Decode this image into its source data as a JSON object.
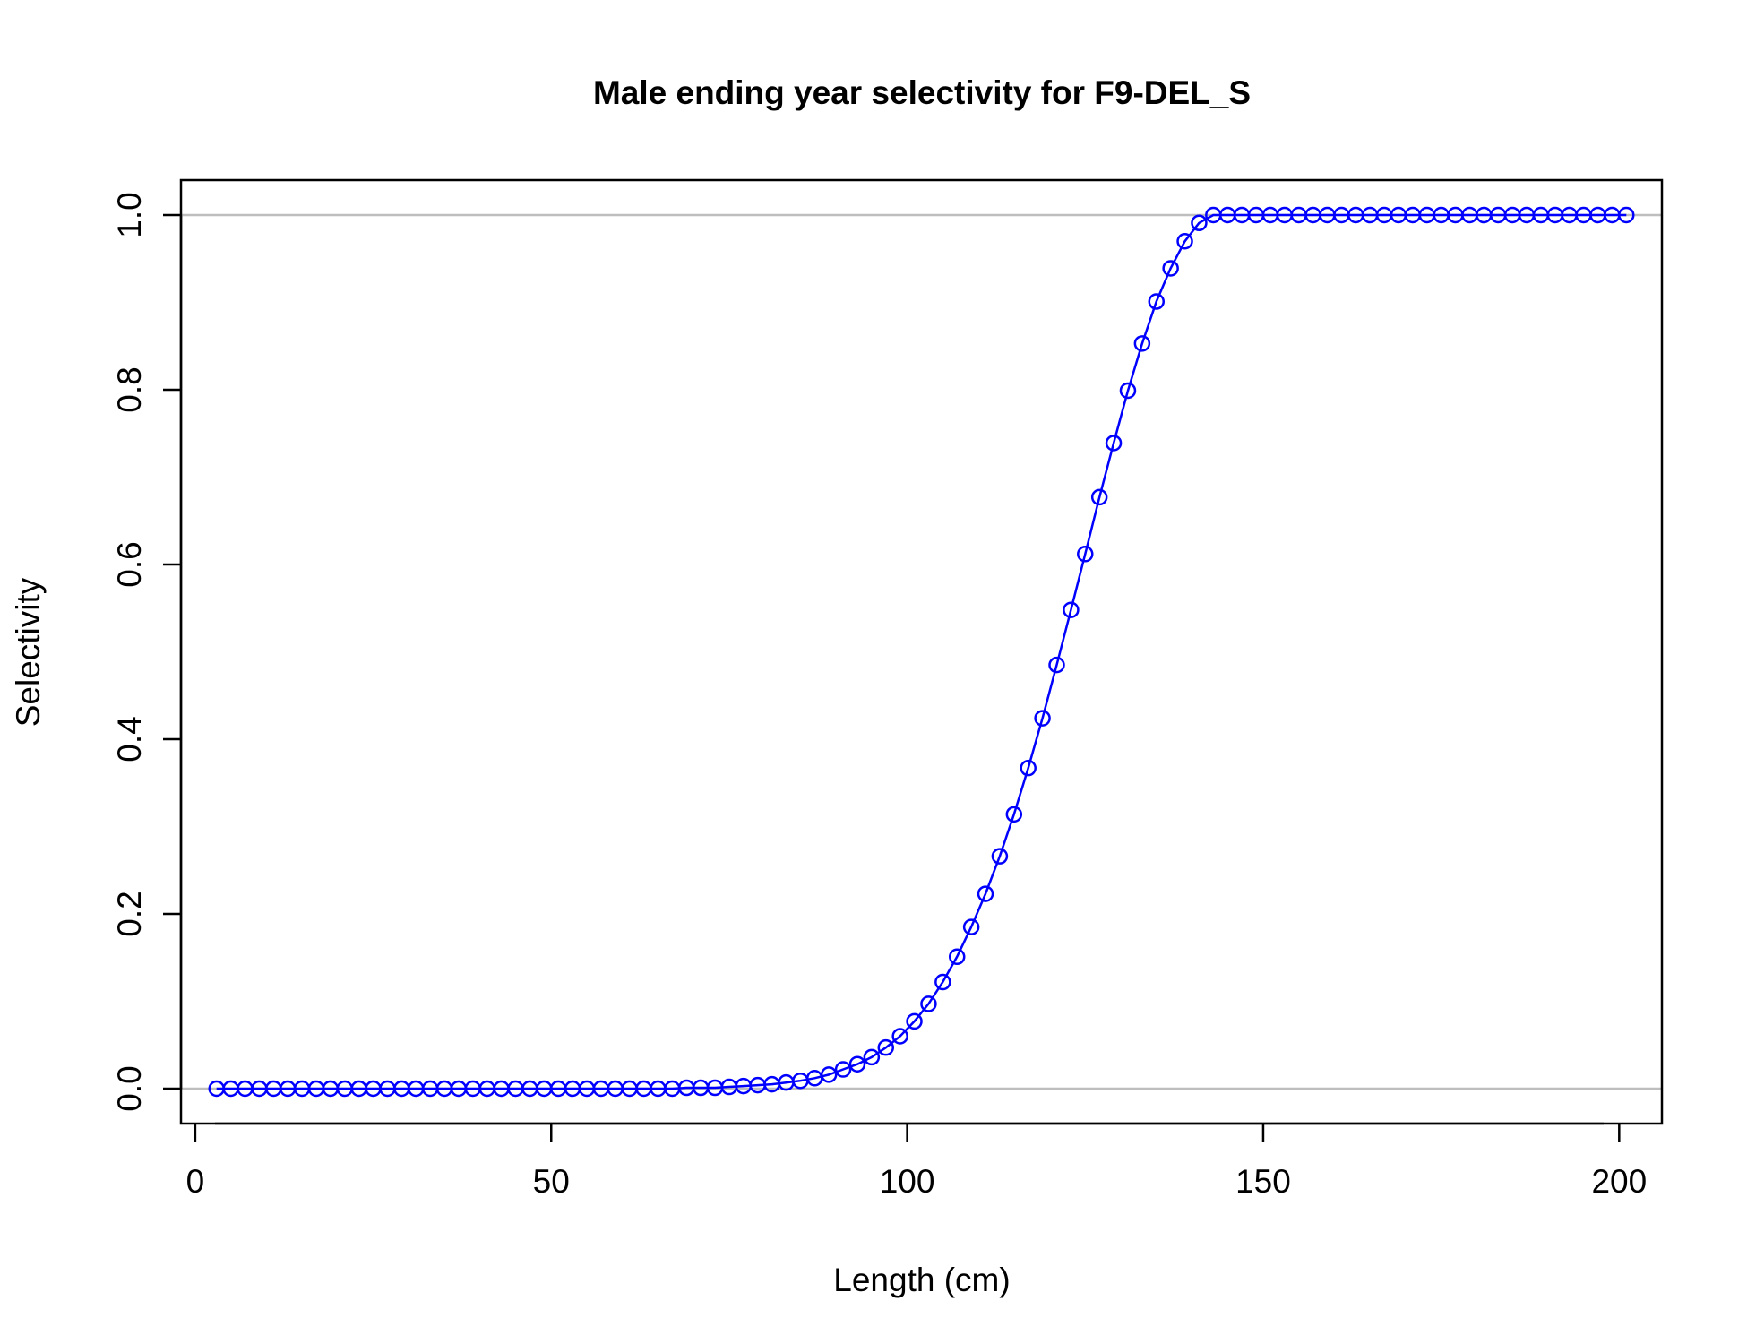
{
  "chart_data": {
    "type": "line",
    "title": "Male ending year selectivity for F9-DEL_S",
    "xlabel": "Length (cm)",
    "ylabel": "Selectivity",
    "xlim": [
      -2,
      206
    ],
    "ylim": [
      -0.04,
      1.04
    ],
    "x_ticks": [
      "0",
      "50",
      "100",
      "150",
      "200"
    ],
    "y_ticks": [
      "0.0",
      "0.2",
      "0.4",
      "0.6",
      "0.8",
      "1.0"
    ],
    "reference_lines": [
      0,
      1
    ],
    "grid": false,
    "colors": {
      "series": "#0000ff",
      "reference": "#bebebe",
      "axes": "#000000"
    },
    "series": [
      {
        "x": [
          3,
          5,
          7,
          9,
          11,
          13,
          15,
          17,
          19,
          21,
          23,
          25,
          27,
          29,
          31,
          33,
          35,
          37,
          39,
          41,
          43,
          45,
          47,
          49,
          51,
          53,
          55,
          57,
          59,
          61,
          63,
          65,
          67,
          69,
          71,
          73,
          75,
          77,
          79,
          81,
          83,
          85,
          87,
          89,
          91,
          93,
          95,
          97,
          99,
          101,
          103,
          105,
          107,
          109,
          111,
          113,
          115,
          117,
          119,
          121,
          123,
          125,
          127,
          129,
          131,
          133,
          135,
          137,
          139,
          141,
          143,
          145,
          147,
          149,
          151,
          153,
          155,
          157,
          159,
          161,
          163,
          165,
          167,
          169,
          171,
          173,
          175,
          177,
          179,
          181,
          183,
          185,
          187,
          189,
          191,
          193,
          195,
          197,
          199,
          201
        ],
        "values": [
          0,
          0,
          0,
          0,
          0,
          0,
          0,
          0,
          0,
          0,
          0,
          0,
          0,
          0,
          0,
          0,
          0,
          0,
          0,
          0,
          0,
          0,
          0,
          0,
          0,
          0,
          0,
          0,
          0,
          0,
          0,
          0,
          0,
          0.001,
          0.001,
          0.001,
          0.002,
          0.003,
          0.004,
          0.005,
          0.007,
          0.009,
          0.012,
          0.016,
          0.022,
          0.028,
          0.036,
          0.047,
          0.06,
          0.077,
          0.097,
          0.122,
          0.151,
          0.185,
          0.223,
          0.266,
          0.314,
          0.367,
          0.424,
          0.485,
          0.548,
          0.612,
          0.677,
          0.739,
          0.799,
          0.853,
          0.901,
          0.939,
          0.97,
          0.991,
          1,
          1,
          1,
          1,
          1,
          1,
          1,
          1,
          1,
          1,
          1,
          1,
          1,
          1,
          1,
          1,
          1,
          1,
          1,
          1,
          1,
          1,
          1,
          1,
          1,
          1,
          1,
          1,
          1,
          1
        ]
      }
    ]
  }
}
